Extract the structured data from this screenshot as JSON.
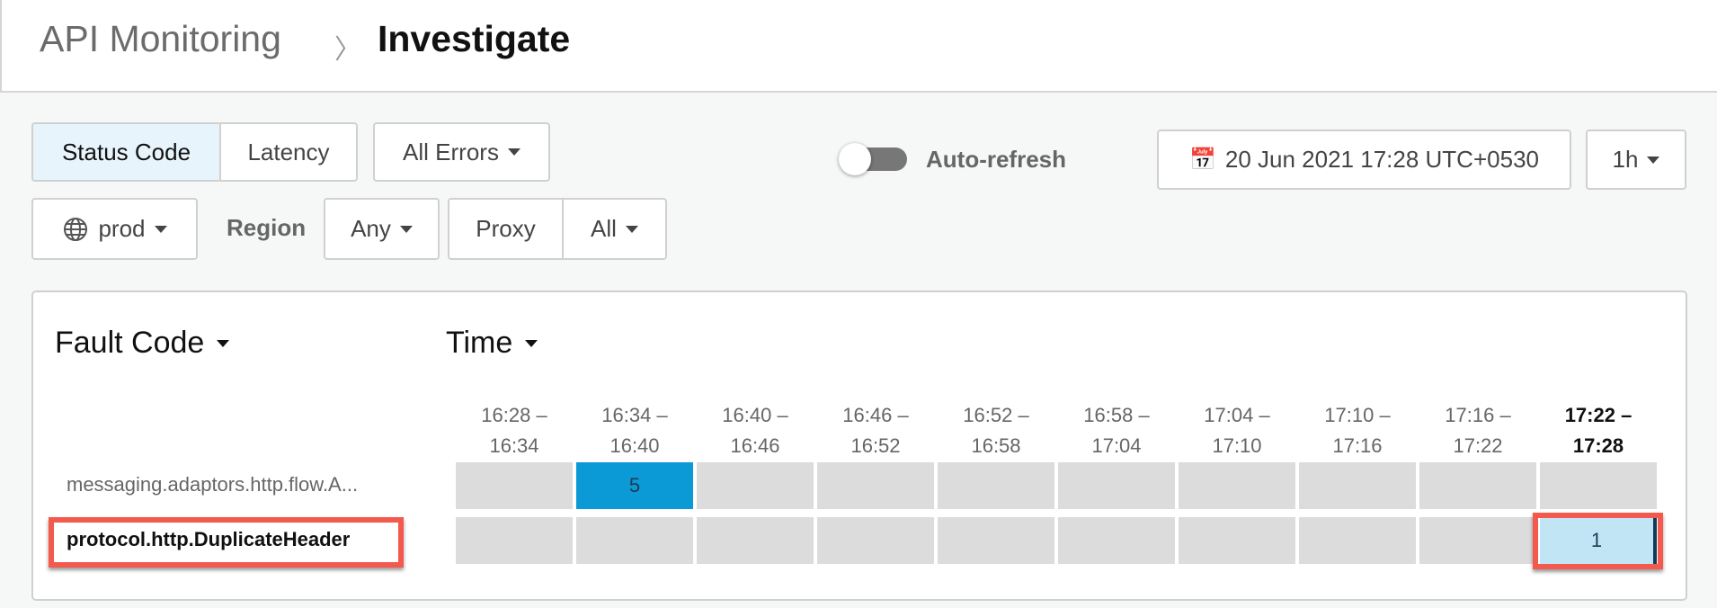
{
  "breadcrumb": {
    "parent": "API Monitoring",
    "current": "Investigate"
  },
  "toolbar": {
    "metric_tabs": [
      {
        "label": "Status Code",
        "active": true
      },
      {
        "label": "Latency",
        "active": false
      }
    ],
    "error_filter": "All Errors",
    "auto_refresh": {
      "label": "Auto-refresh",
      "enabled": false
    },
    "date": "20 Jun 2021 17:28 UTC+0530",
    "range": "1h",
    "environment": "prod",
    "region_label": "Region",
    "region": "Any",
    "proxy_label": "Proxy",
    "proxy": "All"
  },
  "grid": {
    "row_dimension": "Fault Code",
    "col_dimension": "Time",
    "columns": [
      [
        "16:28 –",
        "16:34"
      ],
      [
        "16:34 –",
        "16:40"
      ],
      [
        "16:40 –",
        "16:46"
      ],
      [
        "16:46 –",
        "16:52"
      ],
      [
        "16:52 –",
        "16:58"
      ],
      [
        "16:58 –",
        "17:04"
      ],
      [
        "17:04 –",
        "17:10"
      ],
      [
        "17:10 –",
        "17:16"
      ],
      [
        "17:16 –",
        "17:22"
      ],
      [
        "17:22 –",
        "17:28"
      ]
    ],
    "rows": [
      {
        "label": "messaging.adaptors.http.flow.A...",
        "values": [
          null,
          "5",
          null,
          null,
          null,
          null,
          null,
          null,
          null,
          null
        ]
      },
      {
        "label": "protocol.http.DuplicateHeader",
        "values": [
          null,
          null,
          null,
          null,
          null,
          null,
          null,
          null,
          null,
          "1"
        ]
      }
    ]
  },
  "colors": {
    "accent": "#0c9ad6",
    "selected": "#c2e5f5",
    "highlight": "#f35a4d"
  }
}
